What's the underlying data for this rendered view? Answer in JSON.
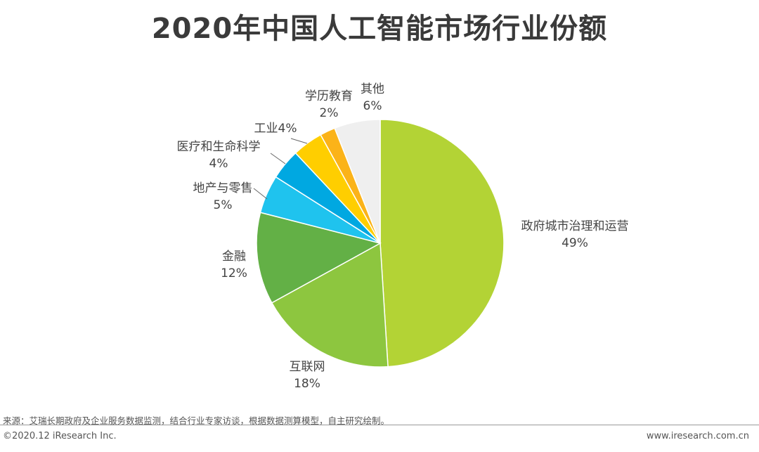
{
  "chart_data": {
    "type": "pie",
    "title": "2020年中国人工智能市场行业份额",
    "unit": "%",
    "slices": [
      {
        "name": "政府城市治理和运营",
        "value": 49,
        "label": "49%",
        "color": "#b3d335"
      },
      {
        "name": "互联网",
        "value": 18,
        "label": "18%",
        "color": "#8dc63f"
      },
      {
        "name": "金融",
        "value": 12,
        "label": "12%",
        "color": "#63b046"
      },
      {
        "name": "地产与零售",
        "value": 5,
        "label": "5%",
        "color": "#1fc3ee"
      },
      {
        "name": "医疗和生命科学",
        "value": 4,
        "label": "4%",
        "color": "#00a8e1"
      },
      {
        "name": "工业",
        "value": 4,
        "label": "4%",
        "color": "#ffce00"
      },
      {
        "name": "学历教育",
        "value": 2,
        "label": "2%",
        "color": "#fbb319"
      },
      {
        "name": "其他",
        "value": 6,
        "label": "6%",
        "color": "#efefef"
      }
    ]
  },
  "footer": {
    "source": "来源：艾瑞长期政府及企业服务数据监测，结合行业专家访谈，根据数据测算模型，自主研究绘制。",
    "copyright": "©2020.12 iResearch Inc.",
    "website": "www.iresearch.com.cn"
  }
}
